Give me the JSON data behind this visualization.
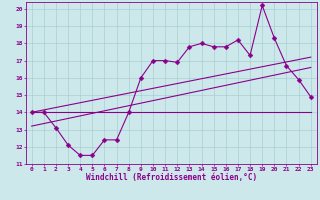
{
  "xlabel": "Windchill (Refroidissement éolien,°C)",
  "bg_color": "#cce8eb",
  "line_color": "#8b008b",
  "grid_color": "#a0c8cc",
  "xlim": [
    -0.5,
    23.5
  ],
  "ylim": [
    11,
    20.4
  ],
  "xticks": [
    0,
    1,
    2,
    3,
    4,
    5,
    6,
    7,
    8,
    9,
    10,
    11,
    12,
    13,
    14,
    15,
    16,
    17,
    18,
    19,
    20,
    21,
    22,
    23
  ],
  "yticks": [
    11,
    12,
    13,
    14,
    15,
    16,
    17,
    18,
    19,
    20
  ],
  "line1_x": [
    0,
    1,
    2,
    3,
    4,
    5,
    6,
    7,
    8,
    9,
    10,
    11,
    12,
    13,
    14,
    15,
    16,
    17,
    18,
    19,
    20,
    21,
    22,
    23
  ],
  "line1_y": [
    14.0,
    14.0,
    13.1,
    12.1,
    11.5,
    11.5,
    12.4,
    12.4,
    14.0,
    16.0,
    17.0,
    17.0,
    16.9,
    17.8,
    18.0,
    17.8,
    17.8,
    18.2,
    17.3,
    20.2,
    18.3,
    16.7,
    15.9,
    14.9
  ],
  "line2_x": [
    0,
    23
  ],
  "line2_y": [
    14.0,
    14.0
  ],
  "line3_x": [
    0,
    23
  ],
  "line3_y": [
    13.2,
    16.6
  ],
  "line4_x": [
    0,
    23
  ],
  "line4_y": [
    14.0,
    17.2
  ],
  "marker": "D",
  "markersize": 2.5,
  "linewidth": 0.8,
  "tick_fontsize": 4.5,
  "xlabel_fontsize": 5.5
}
